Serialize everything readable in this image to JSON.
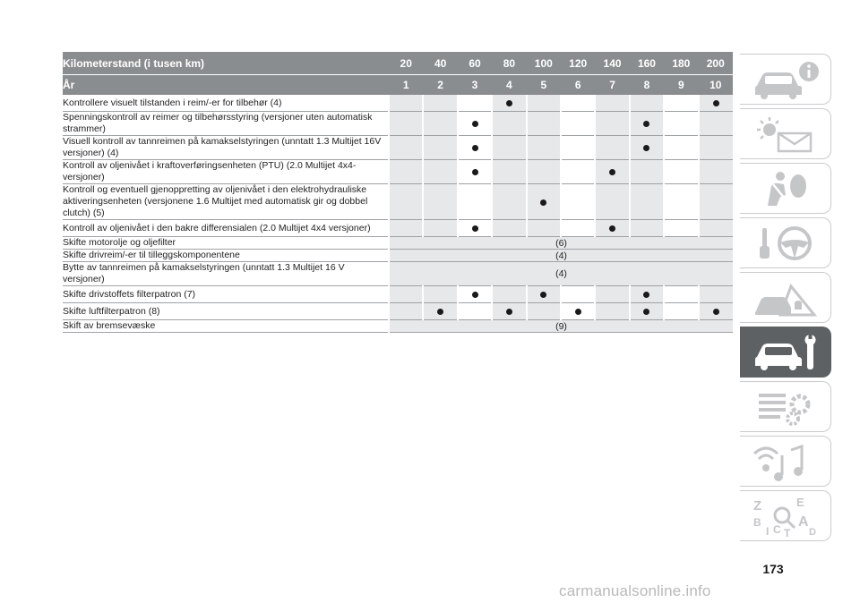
{
  "table": {
    "header_km_label": "Kilometerstand (i tusen km)",
    "header_year_label": "År",
    "km": [
      "20",
      "40",
      "60",
      "80",
      "100",
      "120",
      "140",
      "160",
      "180",
      "200"
    ],
    "years": [
      "1",
      "2",
      "3",
      "4",
      "5",
      "6",
      "7",
      "8",
      "9",
      "10"
    ],
    "rows": [
      {
        "task": "Kontrollere visuelt tilstanden i reim/-er for tilbehør (4)",
        "marks": [
          0,
          0,
          0,
          1,
          0,
          0,
          0,
          0,
          0,
          1
        ]
      },
      {
        "task": "Spenningskontroll av reimer og tilbehørsstyring (versjoner uten automatisk strammer)",
        "marks": [
          0,
          0,
          1,
          0,
          0,
          0,
          0,
          1,
          0,
          0
        ]
      },
      {
        "task": "Visuell kontroll av tannreimen på kamakselstyringen (unntatt 1.3 Multijet 16V versjoner) (4)",
        "marks": [
          0,
          0,
          1,
          0,
          0,
          0,
          0,
          1,
          0,
          0
        ]
      },
      {
        "task": "Kontroll av oljenivået i kraftoverføringsenheten (PTU) (2.0 Multijet 4x4-versjoner)",
        "marks": [
          0,
          0,
          1,
          0,
          0,
          0,
          1,
          0,
          0,
          0
        ]
      },
      {
        "task": "Kontroll og eventuell gjenoppretting av oljenivået i den elektrohydrauliske aktiveringsenheten (versjonene 1.6 Multijet med automatisk gir og dobbel clutch) (5)",
        "marks": [
          0,
          0,
          0,
          0,
          1,
          0,
          0,
          0,
          0,
          0
        ]
      },
      {
        "task": "Kontroll av oljenivået i den bakre differensialen (2.0 Multijet 4x4 versjoner)",
        "marks": [
          0,
          0,
          1,
          0,
          0,
          0,
          1,
          0,
          0,
          0
        ]
      },
      {
        "task": "Skifte motorolje og oljefilter",
        "span": "(6)"
      },
      {
        "task": "Skifte drivreim/-er til tilleggskomponentene",
        "span": "(4)"
      },
      {
        "task": "Bytte av tannreimen på kamakselstyringen (unntatt 1.3 Multijet 16 V versjoner)",
        "span": "(4)"
      },
      {
        "task": "Skifte drivstoffets filterpatron (7)",
        "marks": [
          0,
          0,
          1,
          0,
          1,
          0,
          0,
          1,
          0,
          0
        ]
      },
      {
        "task": "Skifte luftfilterpatron (8)",
        "marks": [
          0,
          1,
          0,
          1,
          0,
          1,
          0,
          1,
          0,
          1
        ]
      },
      {
        "task": "Skift av bremsevæske",
        "span": "(9)"
      }
    ]
  },
  "sidebar": {
    "tabs": [
      {
        "icon": "car-info-icon",
        "active": false
      },
      {
        "icon": "warning-light-message-icon",
        "active": false
      },
      {
        "icon": "seatbelt-airbag-icon",
        "active": false
      },
      {
        "icon": "key-steering-wheel-icon",
        "active": false
      },
      {
        "icon": "car-breakdown-warning-triangle-icon",
        "active": false
      },
      {
        "icon": "car-service-wrench-icon",
        "active": true
      },
      {
        "icon": "technical-data-gears-icon",
        "active": false
      },
      {
        "icon": "multimedia-music-icon",
        "active": false
      },
      {
        "icon": "alphabetical-index-icon",
        "active": false
      }
    ]
  },
  "page_number": "173",
  "watermark": "carmanualsonline.info",
  "colors": {
    "header": "#8a8d90",
    "shade": "#e7e8e9",
    "active_tab": "#5d6164",
    "tab_border": "#c9cbcd"
  }
}
